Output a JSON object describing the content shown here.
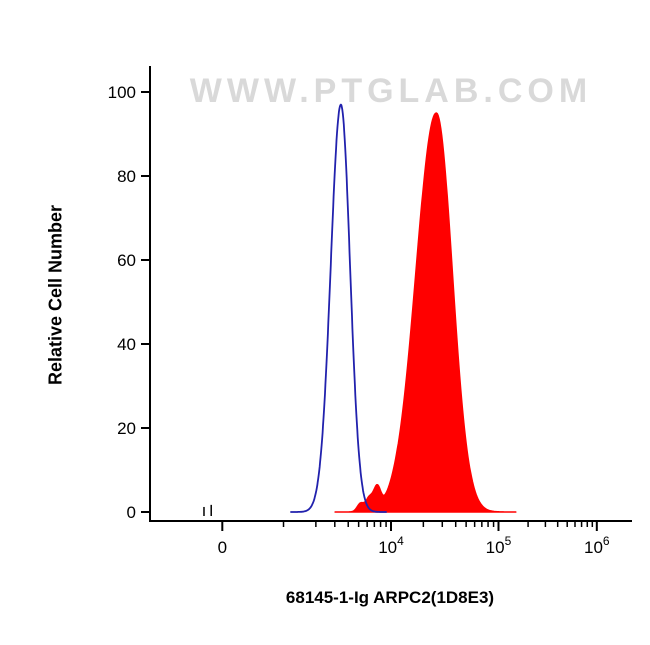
{
  "watermark": "WWW.PTGLAB.COM",
  "caption": "68145-1-Ig ARPC2(1D8E3)",
  "colors": {
    "axis": "#000000",
    "watermark": "#d9d9d9",
    "background": "#ffffff",
    "blue": "#2121ad",
    "red": "#ff0000"
  },
  "chart_data": {
    "type": "area",
    "title": "Flow cytometry histogram overlay",
    "xlabel": "68145-1-Ig ARPC2(1D8E3)",
    "ylabel": "Relative Cell Number",
    "x_scale": "biexponential fluorescence intensity (log decades above 10^3)",
    "grid": false,
    "legend": "none",
    "ylim": [
      0,
      100
    ],
    "y_ticks": [
      0,
      20,
      40,
      60,
      80,
      100
    ],
    "x_ticks": [
      {
        "label": "0",
        "exp": "",
        "pos": 0.15
      },
      {
        "label": "10",
        "exp": "4",
        "pos": 0.5
      },
      {
        "label": "10",
        "exp": "5",
        "pos": 0.723
      },
      {
        "label": "10",
        "exp": "6",
        "pos": 0.927
      }
    ],
    "x_minor_decades": [
      {
        "start": 0.277,
        "width": 0.223
      },
      {
        "start": 0.5,
        "width": 0.223
      },
      {
        "start": 0.723,
        "width": 0.204
      }
    ],
    "series": [
      {
        "name": "control (open blue histogram)",
        "color": "#2121ad",
        "fill": "none",
        "peak": {
          "pos": 0.396,
          "height": 97,
          "x_value_approx": "3e3"
        },
        "sigma_left": 0.021,
        "sigma_right": 0.019,
        "baseline_bumps": []
      },
      {
        "name": "ARPC2 antibody stained (filled red histogram)",
        "color": "#ff0000",
        "fill": "#ff0000",
        "peak": {
          "pos": 0.594,
          "height": 95,
          "x_value_approx": "2.5e4"
        },
        "sigma_left": 0.042,
        "sigma_right": 0.033,
        "baseline_bumps": [
          {
            "pos": 0.437,
            "height": 2
          },
          {
            "pos": 0.455,
            "height": 3
          },
          {
            "pos": 0.471,
            "height": 5
          }
        ]
      }
    ],
    "noise_spikes": [
      {
        "pos": 0.112,
        "height": 1.2,
        "color": "#000000"
      },
      {
        "pos": 0.127,
        "height": 1.7,
        "color": "#000000"
      }
    ]
  }
}
